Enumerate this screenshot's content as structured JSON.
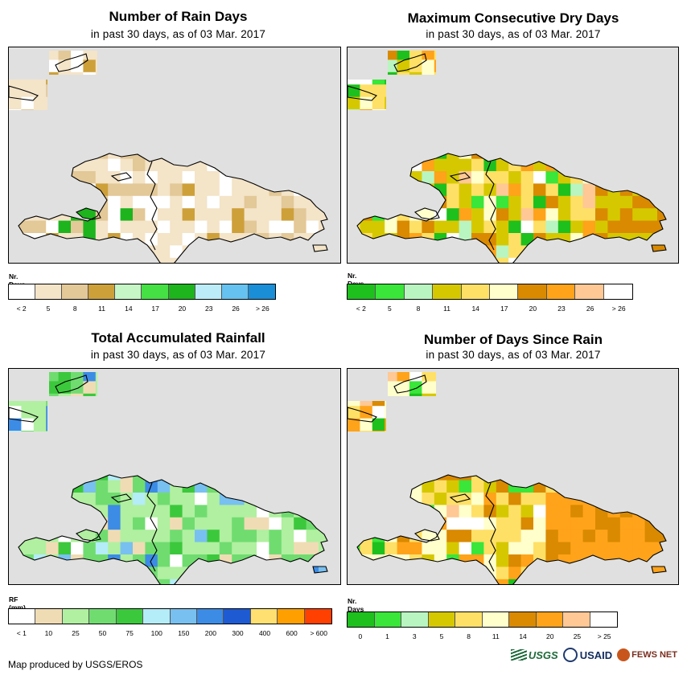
{
  "panels": [
    {
      "title": "Number of Rain Days",
      "subtitle": "in past 30 days, as of 03 Mar. 2017",
      "legend_title": "Nr. Days",
      "legend_colors": [
        "#1ec01e",
        "#39e639",
        "#b9f5c0",
        "#d6c800",
        "#ffe066",
        "#ffffcc",
        "#d98a00",
        "#ffa31a",
        "#ffc894",
        "#ffffff"
      ],
      "legend_labels": [
        "< 2",
        "5",
        "8",
        "11",
        "14",
        "17",
        "20",
        "23",
        "26",
        "> 26"
      ],
      "legend_colors_actual": [
        "#ffffff",
        "#f4e4c8",
        "#e3c898",
        "#cda03a",
        "#c6f5c6",
        "#44e044",
        "#1db41d",
        "#bcecf8",
        "#66c2f0",
        "#1b8ed8"
      ]
    },
    {
      "title": "Maximum Consecutive Dry Days",
      "subtitle": "in past 30 days, as of 03 Mar. 2017",
      "legend_title": "Nr. Days",
      "legend_colors": [
        "#1ec01e",
        "#39e639",
        "#b9f5c0",
        "#d6c800",
        "#ffe066",
        "#ffffcc",
        "#d98a00",
        "#ffa31a",
        "#ffc894",
        "#ffffff"
      ],
      "legend_labels": [
        "< 2",
        "5",
        "8",
        "11",
        "14",
        "17",
        "20",
        "23",
        "26",
        "> 26"
      ]
    },
    {
      "title": "Total Accumulated Rainfall",
      "subtitle": "in past 30 days, as of 03 Mar. 2017",
      "legend_title": "RF (mm)",
      "legend_colors": [
        "#ffffff",
        "#f0dcb4",
        "#b0f0a0",
        "#70dc70",
        "#3cc83c",
        "#b4ecf8",
        "#78c0f0",
        "#3c8ce6",
        "#1e5ad2",
        "#ffe070",
        "#ffa000",
        "#ff4000"
      ],
      "legend_labels": [
        "< 1",
        "10",
        "25",
        "50",
        "75",
        "100",
        "150",
        "200",
        "300",
        "400",
        "600",
        "> 600"
      ]
    },
    {
      "title": "Number of Days Since Rain",
      "subtitle": "in past 30 days, as of 03 Mar. 2017",
      "legend_title": "Nr. Days",
      "legend_colors": [
        "#1ec01e",
        "#39e639",
        "#b9f5c0",
        "#d6c800",
        "#ffe066",
        "#ffffcc",
        "#d98a00",
        "#ffa31a",
        "#ffc894",
        "#ffffff"
      ],
      "legend_labels": [
        "0",
        "1",
        "3",
        "5",
        "8",
        "11",
        "14",
        "20",
        "25",
        "> 25"
      ]
    }
  ],
  "footer": "Map produced by USGS/EROS",
  "logos": {
    "usgs": "USGS",
    "usaid": "USAID",
    "fews": "FEWS NET"
  }
}
